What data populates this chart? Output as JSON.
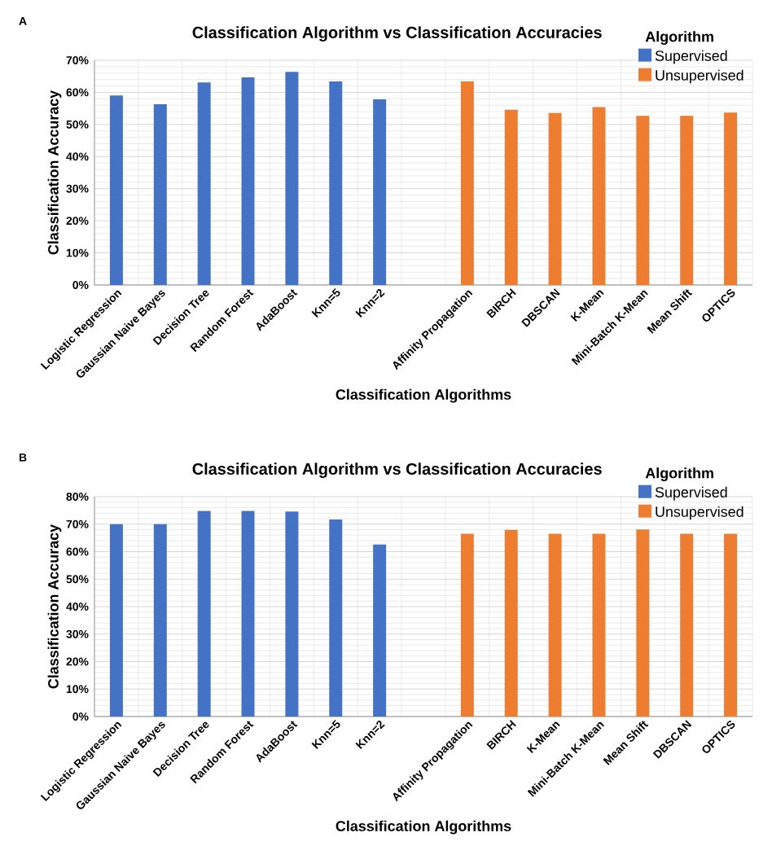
{
  "chart_data": [
    {
      "type": "bar",
      "title": "Classification Algorithm vs Classification Accuracies",
      "xlabel": "Classification Algorithms",
      "ylabel": "Classification Accuracy",
      "legend_title": "Algorithm",
      "annotations": [
        "A"
      ],
      "categories": [
        "Logistic Regression",
        "Gaussian Naive Bayes",
        "Decision Tree",
        "Random Forest",
        "AdaBoost",
        "Knn=5",
        "Knn=2",
        null,
        "Affinity Propagation",
        "BIRCH",
        "DBSCAN",
        "K-Mean",
        "Mini-Batch K-Mean",
        "Mean Shift",
        "OPTICS"
      ],
      "series": [
        {
          "name": "Supervised",
          "color": "#4472c4",
          "values": [
            59.0,
            56.3,
            63.1,
            64.7,
            66.4,
            63.4,
            57.8,
            null,
            null,
            null,
            null,
            null,
            null,
            null,
            null
          ]
        },
        {
          "name": "Unsupervised",
          "color": "#ed7d31",
          "values": [
            null,
            null,
            null,
            null,
            null,
            null,
            null,
            null,
            63.4,
            54.6,
            53.6,
            55.4,
            52.7,
            52.7,
            53.7
          ]
        }
      ],
      "ylim": [
        0,
        70
      ],
      "yticks": [
        {
          "value": 0,
          "label": "0%"
        },
        {
          "value": 10,
          "label": "10%"
        },
        {
          "value": 20,
          "label": "20%"
        },
        {
          "value": 30,
          "label": "30%"
        },
        {
          "value": 40,
          "label": "40%"
        },
        {
          "value": 50,
          "label": "50%"
        },
        {
          "value": 60,
          "label": "60%"
        },
        {
          "value": 70,
          "label": "70%"
        }
      ],
      "grid": true,
      "legend": "top right"
    },
    {
      "type": "bar",
      "title": "Classification Algorithm vs Classification Accuracies",
      "xlabel": "Classification Algorithms",
      "ylabel": "Classification Accuracy",
      "legend_title": "Algorithm",
      "annotations": [
        "B"
      ],
      "categories": [
        "Logistic Regression",
        "Gaussian Naive Bayes",
        "Decision Tree",
        "Random Forest",
        "AdaBoost",
        "Knn=5",
        "Knn=2",
        null,
        "Affinity Propagation",
        "BIRCH",
        "K-Mean",
        "Mini-Batch K-Mean",
        "Mean Shift",
        "DBSCAN",
        "OPTICS"
      ],
      "series": [
        {
          "name": "Supervised",
          "color": "#4472c4",
          "values": [
            70.0,
            70.0,
            74.8,
            74.8,
            74.6,
            71.7,
            62.6,
            null,
            null,
            null,
            null,
            null,
            null,
            null,
            null
          ]
        },
        {
          "name": "Unsupervised",
          "color": "#ed7d31",
          "values": [
            null,
            null,
            null,
            null,
            null,
            null,
            null,
            null,
            66.5,
            67.9,
            66.5,
            66.5,
            68.1,
            66.5,
            66.5
          ]
        }
      ],
      "ylim": [
        0,
        80
      ],
      "yticks": [
        {
          "value": 0,
          "label": "0%"
        },
        {
          "value": 10,
          "label": "10%"
        },
        {
          "value": 20,
          "label": "20%"
        },
        {
          "value": 30,
          "label": "30%"
        },
        {
          "value": 40,
          "label": "40%"
        },
        {
          "value": 50,
          "label": "50%"
        },
        {
          "value": 60,
          "label": "60%"
        },
        {
          "value": 70,
          "label": "70%"
        },
        {
          "value": 80,
          "label": "80%"
        }
      ],
      "grid": true,
      "legend": "top right"
    }
  ]
}
